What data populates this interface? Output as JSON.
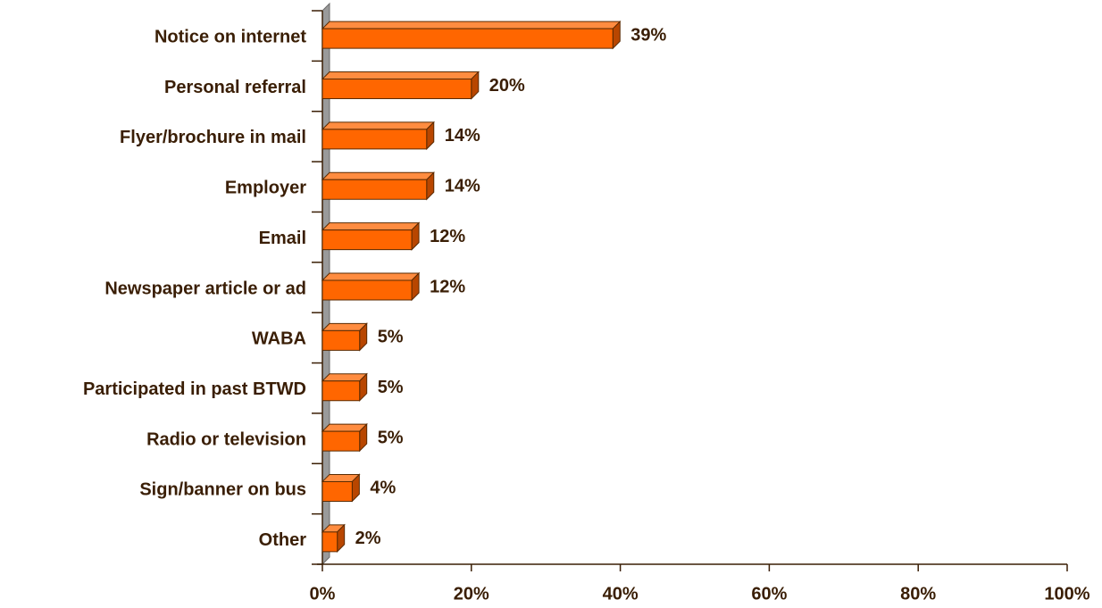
{
  "chart_data": {
    "type": "bar",
    "orientation": "horizontal",
    "categories": [
      "Notice on internet",
      "Personal referral",
      "Flyer/brochure in mail",
      "Employer",
      "Email",
      "Newspaper article or ad",
      "WABA",
      "Participated in past BTWD",
      "Radio or television",
      "Sign/banner on bus",
      "Other"
    ],
    "values": [
      39,
      20,
      14,
      14,
      12,
      12,
      5,
      5,
      5,
      4,
      2
    ],
    "value_labels": [
      "39%",
      "20%",
      "14%",
      "14%",
      "12%",
      "12%",
      "5%",
      "5%",
      "5%",
      "4%",
      "2%"
    ],
    "color": "#ff6600",
    "xlim": [
      0,
      100
    ],
    "xticks": [
      {
        "value": 0,
        "label": "0%"
      },
      {
        "value": 20,
        "label": "20%"
      },
      {
        "value": 40,
        "label": "40%"
      },
      {
        "value": 60,
        "label": "60%"
      },
      {
        "value": 80,
        "label": "80%"
      },
      {
        "value": 100,
        "label": "100%"
      }
    ]
  }
}
